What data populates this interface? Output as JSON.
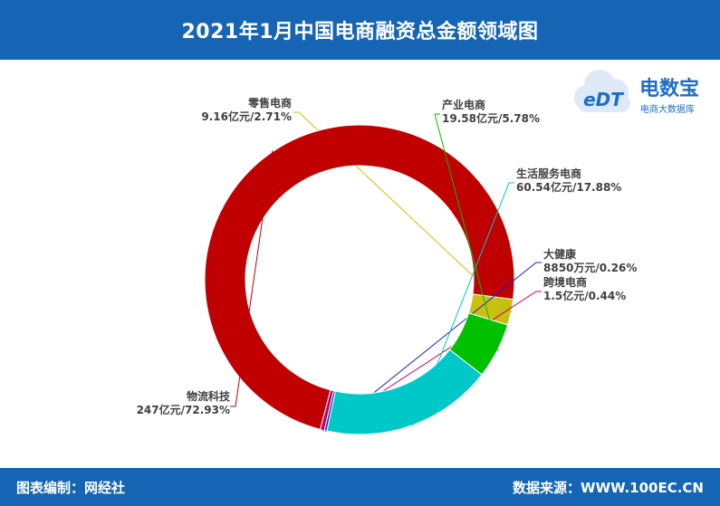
{
  "header": {
    "title": "2021年1月中国电商融资总金额领域图"
  },
  "footer": {
    "left": "图表编制：网经社",
    "right": "数据来源：WWW.100EC.CN"
  },
  "logo": {
    "mark": "eDT",
    "name": "电数宝",
    "tagline": "电商大数据库",
    "color": "#1e6ec8",
    "accent": "#f39800"
  },
  "chart_data": {
    "type": "pie",
    "donut": true,
    "start_angle_deg": -17,
    "direction": "counterclockwise",
    "slices": [
      {
        "name": "零售电商",
        "detail": "9.16亿元/2.71%",
        "value": 2.71,
        "color": "#c8c010"
      },
      {
        "name": "物流科技",
        "detail": "247亿元/72.93%",
        "value": 72.93,
        "color": "#c00000"
      },
      {
        "name": "跨境电商",
        "detail": "1.5亿元/0.44%",
        "value": 0.44,
        "color": "#c0006a"
      },
      {
        "name": "大健康",
        "detail": "8850万元/0.26%",
        "value": 0.26,
        "color": "#2020c0"
      },
      {
        "name": "生活服务电商",
        "detail": "60.54亿元/17.88%",
        "value": 17.88,
        "color": "#00c8c8"
      },
      {
        "name": "产业电商",
        "detail": "19.58亿元/5.78%",
        "value": 5.78,
        "color": "#00c000"
      }
    ]
  }
}
